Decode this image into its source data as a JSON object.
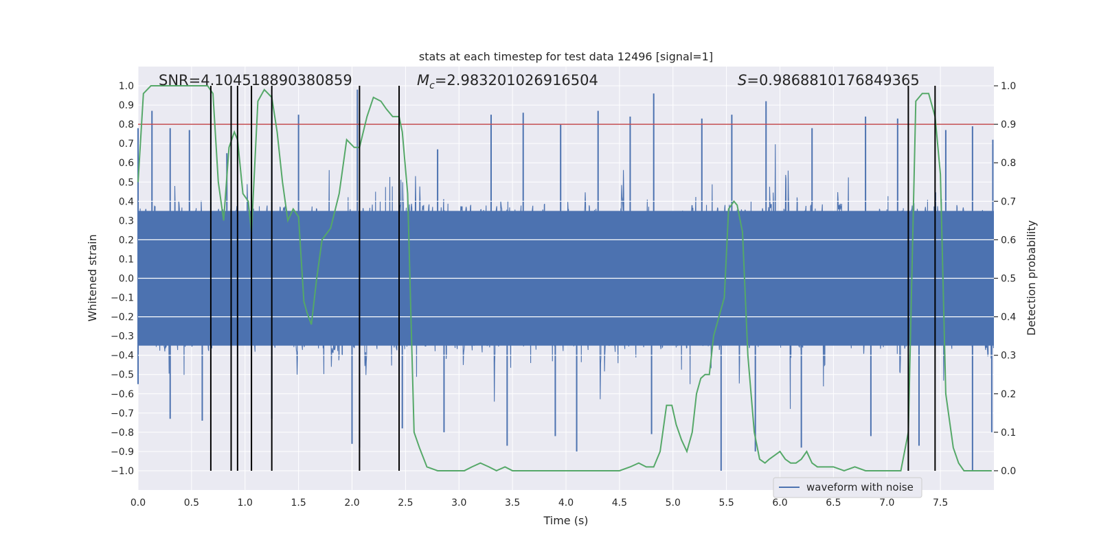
{
  "chart_data": {
    "type": "line",
    "title": "stats at each timestep for test data 12496 [signal=1]",
    "xlabel": "Time (s)",
    "ylabel": "Whitened strain",
    "y2label": "Detection probability",
    "xlim": [
      0.0,
      8.0
    ],
    "ylim": [
      -1.1,
      1.1
    ],
    "y2lim": [
      -0.05,
      1.05
    ],
    "xticks": [
      0.0,
      0.5,
      1.0,
      1.5,
      2.0,
      2.5,
      3.0,
      3.5,
      4.0,
      4.5,
      5.0,
      5.5,
      6.0,
      6.5,
      7.0,
      7.5
    ],
    "yticks": [
      -1.0,
      -0.9,
      -0.8,
      -0.7,
      -0.6,
      -0.5,
      -0.4,
      -0.3,
      -0.2,
      -0.1,
      0.0,
      0.1,
      0.2,
      0.3,
      0.4,
      0.5,
      0.6,
      0.7,
      0.8,
      0.9,
      1.0
    ],
    "y2ticks": [
      0.0,
      0.1,
      0.2,
      0.3,
      0.4,
      0.5,
      0.6,
      0.7,
      0.8,
      0.9,
      1.0
    ],
    "annotations": [
      {
        "label": "SNR",
        "text": "SNR=4.104518890380859",
        "x": 0.2
      },
      {
        "label": "Mc",
        "text": "=2.983201026916504",
        "x": 2.6
      },
      {
        "label": "S",
        "text": "=0.9868810176849365",
        "x": 5.6
      }
    ],
    "legend": {
      "label": "waveform with noise",
      "location": "lower-right"
    },
    "threshold_probability": 0.9,
    "event_lines": [
      0.68,
      0.87,
      0.93,
      1.06,
      1.25,
      2.07,
      2.44,
      7.2,
      7.45
    ],
    "waveform": {
      "name": "waveform with noise",
      "color": "#4c72b0",
      "typical_amplitude": 0.4,
      "peak_times": [
        0.0,
        0.13,
        0.3,
        0.48,
        0.68,
        0.83,
        1.25,
        1.5,
        2.05,
        2.44,
        2.8,
        3.3,
        3.6,
        3.95,
        4.3,
        4.6,
        4.82,
        5.27,
        5.55,
        5.87,
        6.3,
        6.8,
        7.1,
        7.55,
        7.8,
        7.99
      ],
      "peak_values": [
        0.78,
        0.87,
        0.78,
        0.77,
        0.98,
        0.65,
        0.95,
        0.85,
        0.98,
        0.82,
        0.67,
        0.85,
        0.86,
        0.8,
        0.87,
        0.84,
        0.96,
        0.83,
        0.85,
        0.92,
        0.78,
        0.84,
        0.83,
        0.77,
        0.79,
        0.72
      ],
      "trough_times": [
        0.0,
        0.3,
        0.6,
        0.87,
        1.25,
        2.0,
        2.07,
        2.47,
        2.86,
        3.45,
        3.9,
        4.1,
        4.8,
        5.45,
        5.77,
        6.2,
        6.85,
        7.3,
        7.8,
        7.98
      ],
      "trough_values": [
        -0.55,
        -0.73,
        -0.74,
        -0.79,
        -0.73,
        -0.86,
        -0.88,
        -0.78,
        -0.8,
        -0.87,
        -0.82,
        -0.9,
        -0.81,
        -1.0,
        -0.9,
        -0.88,
        -0.82,
        -0.87,
        -1.0,
        -0.8
      ]
    },
    "probability_series": {
      "name": "detection probability",
      "color": "#55a868",
      "x": [
        0.0,
        0.05,
        0.12,
        0.2,
        0.3,
        0.4,
        0.5,
        0.6,
        0.65,
        0.7,
        0.75,
        0.8,
        0.85,
        0.9,
        0.93,
        0.98,
        1.03,
        1.06,
        1.12,
        1.18,
        1.25,
        1.3,
        1.35,
        1.4,
        1.45,
        1.5,
        1.55,
        1.58,
        1.62,
        1.67,
        1.72,
        1.8,
        1.88,
        1.95,
        2.02,
        2.07,
        2.14,
        2.2,
        2.27,
        2.32,
        2.38,
        2.44,
        2.47,
        2.52,
        2.58,
        2.63,
        2.7,
        2.8,
        2.9,
        3.0,
        3.05,
        3.12,
        3.2,
        3.28,
        3.35,
        3.43,
        3.5,
        3.6,
        3.7,
        3.8,
        3.9,
        4.0,
        4.1,
        4.2,
        4.3,
        4.4,
        4.5,
        4.6,
        4.68,
        4.75,
        4.82,
        4.88,
        4.94,
        4.99,
        5.03,
        5.08,
        5.13,
        5.18,
        5.22,
        5.26,
        5.3,
        5.34,
        5.38,
        5.43,
        5.48,
        5.52,
        5.57,
        5.6,
        5.65,
        5.7,
        5.76,
        5.81,
        5.86,
        5.9,
        5.95,
        6.0,
        6.05,
        6.1,
        6.15,
        6.2,
        6.25,
        6.3,
        6.35,
        6.4,
        6.5,
        6.6,
        6.7,
        6.8,
        6.9,
        7.0,
        7.07,
        7.13,
        7.2,
        7.27,
        7.33,
        7.39,
        7.45,
        7.5,
        7.55,
        7.62,
        7.67,
        7.72,
        7.8,
        7.9,
        7.98
      ],
      "values": [
        0.75,
        0.98,
        1.0,
        1.0,
        1.0,
        1.0,
        1.0,
        1.0,
        1.0,
        0.98,
        0.75,
        0.65,
        0.84,
        0.88,
        0.86,
        0.72,
        0.7,
        0.62,
        0.96,
        0.99,
        0.97,
        0.88,
        0.75,
        0.65,
        0.68,
        0.66,
        0.44,
        0.41,
        0.38,
        0.5,
        0.6,
        0.63,
        0.72,
        0.86,
        0.84,
        0.84,
        0.92,
        0.97,
        0.96,
        0.94,
        0.92,
        0.92,
        0.88,
        0.72,
        0.1,
        0.06,
        0.01,
        0.0,
        0.0,
        0.0,
        0.0,
        0.01,
        0.02,
        0.01,
        0.0,
        0.01,
        0.0,
        0.0,
        0.0,
        0.0,
        0.0,
        0.0,
        0.0,
        0.0,
        0.0,
        0.0,
        0.0,
        0.01,
        0.02,
        0.01,
        0.01,
        0.05,
        0.17,
        0.17,
        0.12,
        0.08,
        0.05,
        0.1,
        0.2,
        0.24,
        0.25,
        0.25,
        0.35,
        0.4,
        0.45,
        0.68,
        0.7,
        0.69,
        0.62,
        0.3,
        0.1,
        0.03,
        0.02,
        0.03,
        0.04,
        0.05,
        0.03,
        0.02,
        0.02,
        0.03,
        0.05,
        0.02,
        0.01,
        0.01,
        0.01,
        0.0,
        0.01,
        0.0,
        0.0,
        0.0,
        0.0,
        0.0,
        0.1,
        0.96,
        0.98,
        0.98,
        0.92,
        0.77,
        0.2,
        0.06,
        0.02,
        0.0,
        0.0,
        0.0,
        0.0
      ]
    }
  }
}
